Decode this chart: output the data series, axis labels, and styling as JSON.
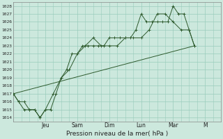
{
  "xlabel": "Pression niveau de la mer( hPa )",
  "bg_color": "#cce8dd",
  "grid_color": "#99ccbb",
  "line_color": "#2d5a2d",
  "ylim": [
    1013.5,
    1028.5
  ],
  "yticks": [
    1014,
    1015,
    1016,
    1017,
    1018,
    1019,
    1020,
    1021,
    1022,
    1023,
    1024,
    1025,
    1026,
    1027,
    1028
  ],
  "day_labels": [
    "Jeu",
    "Sam",
    "Dim",
    "Lun",
    "Mar",
    "M"
  ],
  "day_positions": [
    2.0,
    4.0,
    6.0,
    8.0,
    10.0,
    12.0
  ],
  "xlim": [
    0,
    13.0
  ],
  "series1_x": [
    0.0,
    0.33,
    0.67,
    1.0,
    1.33,
    1.67,
    2.0,
    2.33,
    2.67,
    3.0,
    3.33,
    3.67,
    4.0,
    4.33,
    4.67,
    5.0,
    5.33,
    5.67,
    6.0,
    6.33,
    6.67,
    7.0,
    7.33,
    7.67,
    8.0,
    8.33,
    8.67,
    9.0,
    9.33,
    9.67,
    10.0,
    10.33,
    10.67,
    11.0,
    11.33
  ],
  "series1_y": [
    1017,
    1016,
    1016,
    1015,
    1015,
    1014,
    1015,
    1015,
    1017,
    1019,
    1020,
    1022,
    1022,
    1023,
    1023,
    1023,
    1023,
    1023,
    1024,
    1024,
    1024,
    1024,
    1024,
    1025,
    1027,
    1026,
    1026,
    1026,
    1026,
    1026,
    1028,
    1027,
    1027,
    1025,
    1023
  ],
  "series2_x": [
    0.0,
    0.33,
    0.67,
    1.0,
    1.33,
    1.67,
    2.0,
    2.5,
    3.0,
    3.5,
    4.0,
    4.5,
    5.0,
    5.5,
    6.0,
    6.5,
    7.0,
    7.5,
    8.0,
    8.5,
    9.0,
    9.5,
    10.0,
    10.5,
    11.0,
    11.33
  ],
  "series2_y": [
    1017,
    1016,
    1015,
    1015,
    1015,
    1014,
    1015,
    1017,
    1019,
    1020,
    1022,
    1023,
    1024,
    1023,
    1023,
    1023,
    1024,
    1024,
    1024,
    1025,
    1027,
    1027,
    1026,
    1025,
    1025,
    1023
  ],
  "series3_x": [
    0.0,
    11.33
  ],
  "series3_y": [
    1017,
    1023
  ]
}
